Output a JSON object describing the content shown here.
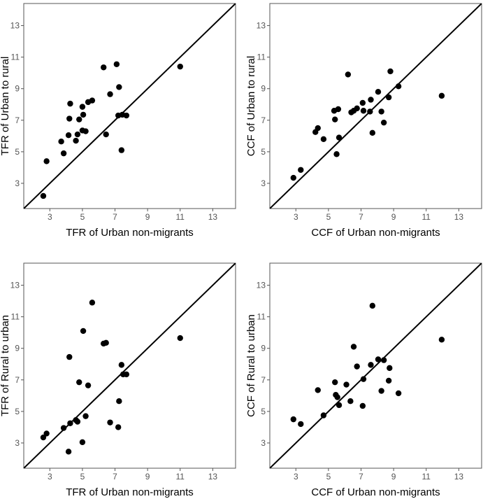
{
  "chart_data": [
    {
      "type": "scatter",
      "xlabel": "TFR of Urban non-migrants",
      "ylabel": "TFR of Urban to rural",
      "xlim": [
        1.4,
        14.4
      ],
      "ylim": [
        1.4,
        14.4
      ],
      "xticks": [
        3,
        5,
        7,
        9,
        11,
        13
      ],
      "yticks": [
        3,
        5,
        7,
        9,
        11,
        13
      ],
      "reference_line": "y = x",
      "grid": false,
      "points": [
        {
          "x": 2.6,
          "y": 2.2
        },
        {
          "x": 2.8,
          "y": 4.4
        },
        {
          "x": 3.7,
          "y": 5.65
        },
        {
          "x": 3.85,
          "y": 4.9
        },
        {
          "x": 4.15,
          "y": 6.05
        },
        {
          "x": 4.2,
          "y": 7.1
        },
        {
          "x": 4.25,
          "y": 8.05
        },
        {
          "x": 4.6,
          "y": 5.7
        },
        {
          "x": 4.7,
          "y": 6.1
        },
        {
          "x": 4.8,
          "y": 7.05
        },
        {
          "x": 5.0,
          "y": 6.35
        },
        {
          "x": 5.0,
          "y": 7.85
        },
        {
          "x": 5.05,
          "y": 7.35
        },
        {
          "x": 5.2,
          "y": 6.3
        },
        {
          "x": 5.35,
          "y": 8.15
        },
        {
          "x": 5.6,
          "y": 8.25
        },
        {
          "x": 6.3,
          "y": 10.35
        },
        {
          "x": 6.45,
          "y": 6.1
        },
        {
          "x": 6.7,
          "y": 8.65
        },
        {
          "x": 7.1,
          "y": 10.55
        },
        {
          "x": 7.2,
          "y": 7.3
        },
        {
          "x": 7.25,
          "y": 9.1
        },
        {
          "x": 7.4,
          "y": 5.1
        },
        {
          "x": 7.45,
          "y": 7.35
        },
        {
          "x": 7.7,
          "y": 7.3
        },
        {
          "x": 11.0,
          "y": 10.4
        }
      ]
    },
    {
      "type": "scatter",
      "xlabel": "CCF of Urban non-migrants",
      "ylabel": "CCF of Urban to rural",
      "xlim": [
        1.4,
        14.4
      ],
      "ylim": [
        1.4,
        14.4
      ],
      "xticks": [
        3,
        5,
        7,
        9,
        11,
        13
      ],
      "yticks": [
        3,
        5,
        7,
        9,
        11,
        13
      ],
      "reference_line": "y = x",
      "grid": false,
      "points": [
        {
          "x": 2.85,
          "y": 3.35
        },
        {
          "x": 3.3,
          "y": 3.85
        },
        {
          "x": 4.2,
          "y": 6.25
        },
        {
          "x": 4.35,
          "y": 6.5
        },
        {
          "x": 4.7,
          "y": 5.8
        },
        {
          "x": 5.35,
          "y": 7.6
        },
        {
          "x": 5.4,
          "y": 7.05
        },
        {
          "x": 5.5,
          "y": 4.85
        },
        {
          "x": 5.6,
          "y": 7.7
        },
        {
          "x": 5.65,
          "y": 5.9
        },
        {
          "x": 6.2,
          "y": 9.9
        },
        {
          "x": 6.4,
          "y": 7.5
        },
        {
          "x": 6.55,
          "y": 7.6
        },
        {
          "x": 6.75,
          "y": 7.75
        },
        {
          "x": 7.1,
          "y": 8.1
        },
        {
          "x": 7.15,
          "y": 7.6
        },
        {
          "x": 7.55,
          "y": 7.55
        },
        {
          "x": 7.6,
          "y": 8.3
        },
        {
          "x": 7.7,
          "y": 6.2
        },
        {
          "x": 8.05,
          "y": 8.8
        },
        {
          "x": 8.25,
          "y": 7.55
        },
        {
          "x": 8.4,
          "y": 6.85
        },
        {
          "x": 8.7,
          "y": 8.45
        },
        {
          "x": 8.8,
          "y": 10.1
        },
        {
          "x": 9.3,
          "y": 9.15
        },
        {
          "x": 11.95,
          "y": 8.55
        }
      ]
    },
    {
      "type": "scatter",
      "xlabel": "TFR of Urban non-migrants",
      "ylabel": "TFR of Rural to urban",
      "xlim": [
        1.4,
        14.4
      ],
      "ylim": [
        1.4,
        14.4
      ],
      "xticks": [
        3,
        5,
        7,
        9,
        11,
        13
      ],
      "yticks": [
        3,
        5,
        7,
        9,
        11,
        13
      ],
      "reference_line": "y = x",
      "grid": false,
      "points": [
        {
          "x": 2.6,
          "y": 3.35
        },
        {
          "x": 2.8,
          "y": 3.6
        },
        {
          "x": 3.85,
          "y": 3.95
        },
        {
          "x": 4.15,
          "y": 2.45
        },
        {
          "x": 4.2,
          "y": 8.45
        },
        {
          "x": 4.25,
          "y": 4.25
        },
        {
          "x": 4.6,
          "y": 4.45
        },
        {
          "x": 4.7,
          "y": 4.35
        },
        {
          "x": 4.8,
          "y": 6.85
        },
        {
          "x": 5.0,
          "y": 3.05
        },
        {
          "x": 5.05,
          "y": 10.1
        },
        {
          "x": 5.2,
          "y": 4.7
        },
        {
          "x": 5.35,
          "y": 6.65
        },
        {
          "x": 5.6,
          "y": 11.9
        },
        {
          "x": 6.3,
          "y": 9.3
        },
        {
          "x": 6.45,
          "y": 9.35
        },
        {
          "x": 6.7,
          "y": 4.3
        },
        {
          "x": 7.2,
          "y": 4.0
        },
        {
          "x": 7.25,
          "y": 5.65
        },
        {
          "x": 7.4,
          "y": 7.95
        },
        {
          "x": 7.5,
          "y": 7.35
        },
        {
          "x": 7.7,
          "y": 7.35
        },
        {
          "x": 11.0,
          "y": 9.65
        }
      ]
    },
    {
      "type": "scatter",
      "xlabel": "CCF of Urban non-migrants",
      "ylabel": "CCF of Rural to urban",
      "xlim": [
        1.4,
        14.4
      ],
      "ylim": [
        1.4,
        14.4
      ],
      "xticks": [
        3,
        5,
        7,
        9,
        11,
        13
      ],
      "yticks": [
        3,
        5,
        7,
        9,
        11,
        13
      ],
      "reference_line": "y = x",
      "grid": false,
      "points": [
        {
          "x": 2.85,
          "y": 4.5
        },
        {
          "x": 3.3,
          "y": 4.2
        },
        {
          "x": 4.35,
          "y": 6.35
        },
        {
          "x": 4.7,
          "y": 4.75
        },
        {
          "x": 5.4,
          "y": 6.85
        },
        {
          "x": 5.45,
          "y": 6.05
        },
        {
          "x": 5.55,
          "y": 5.9
        },
        {
          "x": 5.65,
          "y": 5.4
        },
        {
          "x": 6.1,
          "y": 6.7
        },
        {
          "x": 6.35,
          "y": 5.65
        },
        {
          "x": 6.55,
          "y": 9.1
        },
        {
          "x": 6.75,
          "y": 7.85
        },
        {
          "x": 7.1,
          "y": 5.35
        },
        {
          "x": 7.15,
          "y": 7.05
        },
        {
          "x": 7.6,
          "y": 7.95
        },
        {
          "x": 7.7,
          "y": 11.7
        },
        {
          "x": 8.05,
          "y": 8.3
        },
        {
          "x": 8.25,
          "y": 6.3
        },
        {
          "x": 8.4,
          "y": 8.25
        },
        {
          "x": 8.7,
          "y": 6.95
        },
        {
          "x": 8.75,
          "y": 7.75
        },
        {
          "x": 9.3,
          "y": 6.15
        },
        {
          "x": 11.95,
          "y": 9.55
        }
      ]
    }
  ]
}
